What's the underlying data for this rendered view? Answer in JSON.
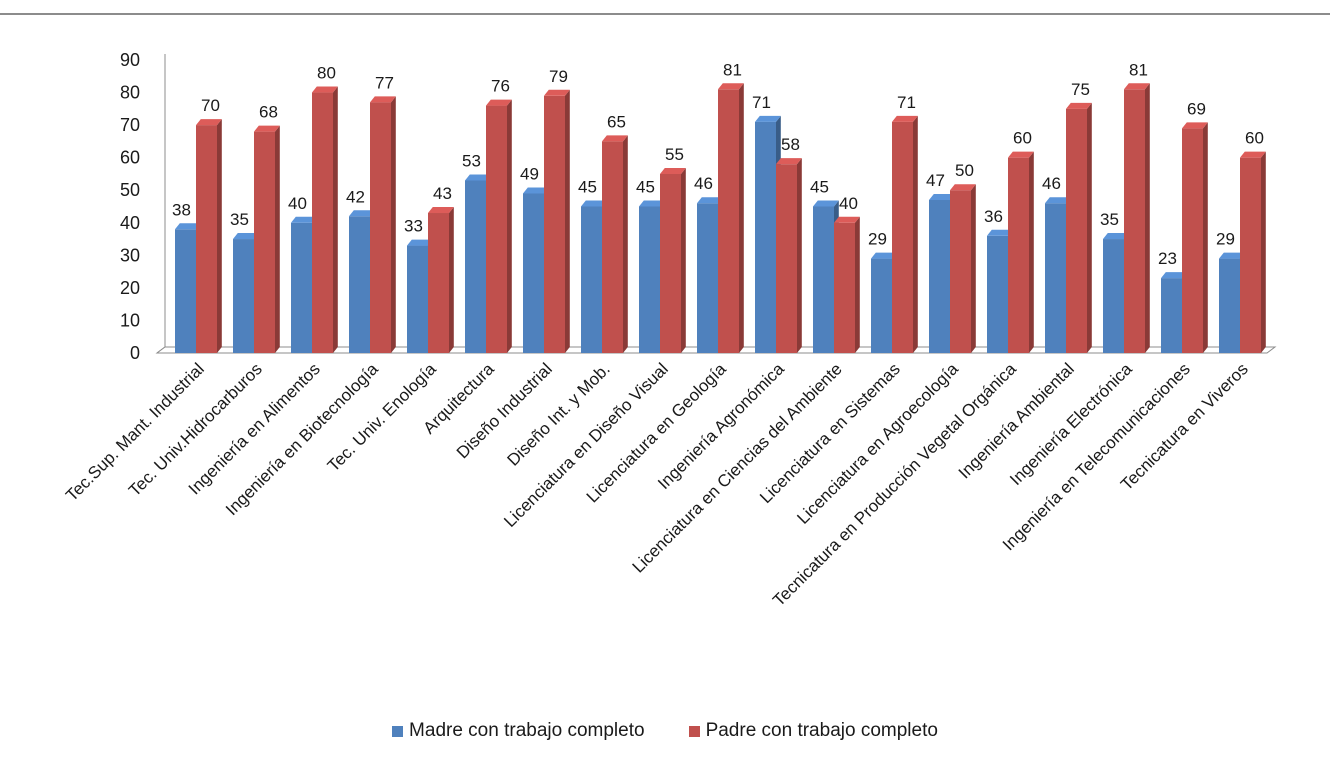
{
  "chart_data": {
    "type": "bar",
    "title": "",
    "xlabel": "",
    "ylabel": "",
    "ylim": [
      0,
      90
    ],
    "yticks": [
      0,
      10,
      20,
      30,
      40,
      50,
      60,
      70,
      80,
      90
    ],
    "grid": false,
    "legend_position": "bottom",
    "categories": [
      "Tec.Sup. Mant. Industrial",
      "Tec. Univ.Hidrocarburos",
      "Ingeniería en Alimentos",
      "Ingeniería en Biotecnología",
      "Tec. Univ. Enología",
      "Arquitectura",
      "Diseño Industrial",
      "Diseño Int. y Mob.",
      "Licenciatura en Diseño Visual",
      "Licenciatura en Geología",
      "Ingeniería Agronómica",
      "Licenciatura en Ciencias del Ambiente",
      "Licenciatura en Sistemas",
      "Licenciatura en Agroecología",
      "Tecnicatura en Producción Vegetal Orgánica",
      "Ingeniería Ambiental",
      "Ingeniería Electrónica",
      "Ingeniería en Telecomunicaciones",
      "Tecnicatura en Viveros"
    ],
    "series": [
      {
        "name": "Madre con trabajo completo",
        "color": "#4f81bd",
        "values": [
          38,
          35,
          40,
          42,
          33,
          53,
          49,
          45,
          45,
          46,
          71,
          45,
          29,
          47,
          36,
          46,
          35,
          23,
          29
        ]
      },
      {
        "name": "Padre con trabajo completo",
        "color": "#c0504d",
        "values": [
          70,
          68,
          80,
          77,
          43,
          76,
          79,
          65,
          55,
          81,
          58,
          40,
          71,
          50,
          60,
          75,
          81,
          69,
          60
        ]
      }
    ]
  }
}
